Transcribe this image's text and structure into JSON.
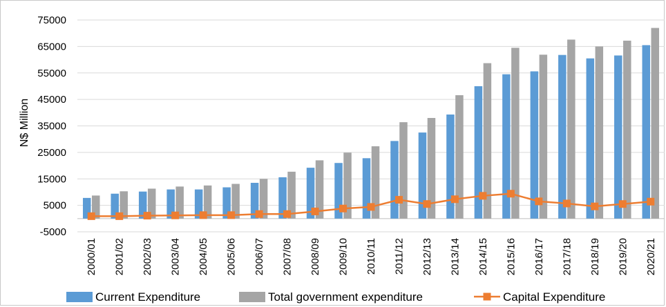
{
  "chart_data": {
    "type": "bar",
    "title": "",
    "xlabel": "",
    "ylabel": "N$ Million",
    "ylim": [
      -5000,
      75000
    ],
    "yticks": [
      -5000,
      5000,
      15000,
      25000,
      35000,
      45000,
      55000,
      65000,
      75000
    ],
    "grid": true,
    "legend_position": "bottom",
    "categories": [
      "2000/01",
      "2001/02",
      "2002/03",
      "2003/04",
      "2004/05",
      "2005/06",
      "2006/07",
      "2007/08",
      "2008/09",
      "2009/10",
      "2010/11",
      "2011/12",
      "2012/13",
      "2013/14",
      "2014/15",
      "2015/16",
      "2016/17",
      "2017/18",
      "2018/19",
      "2019/20",
      "2020/21"
    ],
    "series": [
      {
        "name": "Current Expenditure",
        "type": "bar",
        "color": "#5b9bd5",
        "values": [
          7800,
          9400,
          10200,
          11000,
          11000,
          11800,
          13500,
          15600,
          19200,
          21000,
          22800,
          29300,
          32500,
          39300,
          50000,
          54500,
          55600,
          61800,
          60500,
          61600,
          65500
        ]
      },
      {
        "name": "Total government expenditure",
        "type": "bar",
        "color": "#a5a5a5",
        "values": [
          8700,
          10300,
          11300,
          12100,
          12500,
          13100,
          15000,
          17700,
          22000,
          24900,
          27300,
          36400,
          38000,
          46600,
          58700,
          64500,
          61900,
          67600,
          65000,
          67200,
          72000
        ]
      },
      {
        "name": "Capital Expenditure",
        "type": "line",
        "color": "#ed7d31",
        "values": [
          900,
          900,
          1100,
          1200,
          1300,
          1300,
          1700,
          1700,
          2700,
          3800,
          4400,
          7100,
          5500,
          7300,
          8600,
          9400,
          6500,
          5700,
          4600,
          5500,
          6400
        ]
      }
    ]
  }
}
